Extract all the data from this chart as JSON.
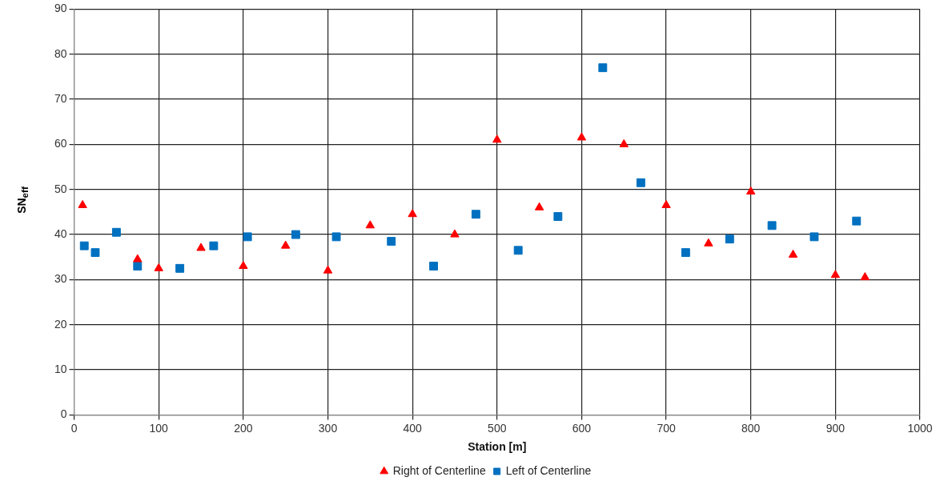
{
  "chart_data": {
    "type": "scatter",
    "xlabel": "Station [m]",
    "ylabel": "SN$_{eff}$",
    "xlim": [
      0,
      1000
    ],
    "xticks": [
      0,
      100,
      200,
      300,
      400,
      500,
      600,
      700,
      800,
      900,
      1000
    ],
    "ylim": [
      0,
      90
    ],
    "yticks": [
      0,
      10,
      20,
      30,
      40,
      50,
      60,
      70,
      80,
      90
    ],
    "grid": true,
    "legend": "bottom",
    "series": [
      {
        "name": "Right of Centerline",
        "color": "#ff0000",
        "marker": "triangle",
        "x": [
          10,
          75,
          100,
          150,
          200,
          250,
          300,
          350,
          400,
          450,
          500,
          550,
          600,
          650,
          700,
          750,
          800,
          850,
          900,
          935
        ],
        "values": [
          46.5,
          34.5,
          32.5,
          37,
          33,
          37.5,
          32,
          42,
          44.5,
          40,
          61,
          46,
          61.5,
          60,
          46.5,
          38,
          49.5,
          35.5,
          31,
          30.5
        ]
      },
      {
        "name": "Left of Centerline",
        "color": "#0070c0",
        "marker": "square",
        "x": [
          12,
          25,
          50,
          75,
          125,
          165,
          205,
          262,
          310,
          375,
          425,
          475,
          525,
          572,
          625,
          670,
          723,
          775,
          825,
          875,
          925
        ],
        "values": [
          37.5,
          36,
          40.5,
          33,
          32.5,
          37.5,
          39.5,
          40,
          39.5,
          38.5,
          33,
          44.5,
          36.5,
          44,
          77,
          51.5,
          36,
          39,
          42,
          39.5,
          43
        ]
      }
    ]
  }
}
